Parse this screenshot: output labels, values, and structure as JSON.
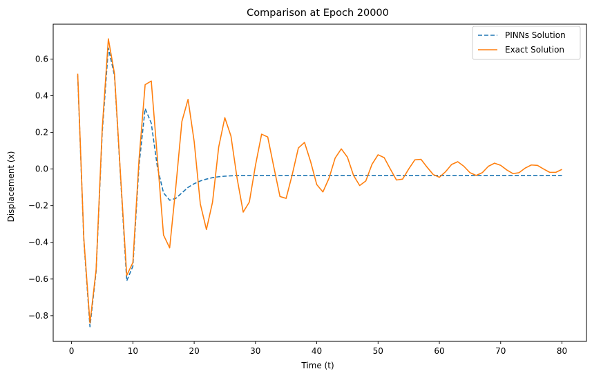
{
  "chart_data": {
    "type": "line",
    "title": "Comparison at Epoch 20000",
    "xlabel": "Time (t)",
    "ylabel": "Displacement (x)",
    "xlim": [
      -3.0,
      84.0
    ],
    "ylim": [
      -0.94,
      0.79
    ],
    "xticks": [
      0,
      10,
      20,
      30,
      40,
      50,
      60,
      70,
      80
    ],
    "yticks": [
      -0.8,
      -0.6,
      -0.4,
      -0.2,
      0.0,
      0.2,
      0.4,
      0.6
    ],
    "ytick_labels": [
      "−0.8",
      "−0.6",
      "−0.4",
      "−0.2",
      "0.0",
      "0.2",
      "0.4",
      "0.6"
    ],
    "grid": false,
    "legend_position": "top-right",
    "series": [
      {
        "name": "PINNs Solution",
        "color": "#1f77b4",
        "style": "dashed",
        "x": [
          1,
          2,
          3,
          4,
          5,
          6,
          7,
          8,
          9,
          10,
          11,
          12,
          13,
          14,
          15,
          16,
          17,
          18,
          19,
          20,
          21,
          22,
          23,
          24,
          25,
          26,
          27,
          28,
          29,
          30,
          35,
          40,
          45,
          50,
          55,
          60,
          65,
          70,
          75,
          80
        ],
        "y": [
          0.51,
          -0.39,
          -0.86,
          -0.56,
          0.2,
          0.66,
          0.51,
          -0.05,
          -0.61,
          -0.53,
          0.02,
          0.33,
          0.25,
          0.01,
          -0.13,
          -0.17,
          -0.16,
          -0.13,
          -0.1,
          -0.08,
          -0.065,
          -0.055,
          -0.047,
          -0.042,
          -0.039,
          -0.037,
          -0.036,
          -0.035,
          -0.035,
          -0.035,
          -0.035,
          -0.035,
          -0.035,
          -0.035,
          -0.035,
          -0.035,
          -0.035,
          -0.035,
          -0.035,
          -0.035
        ]
      },
      {
        "name": "Exact Solution",
        "color": "#ff7f0e",
        "style": "solid",
        "x": [
          1,
          2,
          3,
          4,
          5,
          6,
          7,
          8,
          9,
          10,
          11,
          12,
          13,
          14,
          15,
          16,
          17,
          18,
          19,
          20,
          21,
          22,
          23,
          24,
          25,
          26,
          27,
          28,
          29,
          30,
          31,
          32,
          33,
          34,
          35,
          36,
          37,
          38,
          39,
          40,
          41,
          42,
          43,
          44,
          45,
          46,
          47,
          48,
          49,
          50,
          51,
          52,
          53,
          54,
          55,
          56,
          57,
          58,
          59,
          60,
          61,
          62,
          63,
          64,
          65,
          66,
          67,
          68,
          69,
          70,
          71,
          72,
          73,
          74,
          75,
          76,
          77,
          78,
          79,
          80
        ],
        "y": [
          0.52,
          -0.38,
          -0.84,
          -0.55,
          0.22,
          0.71,
          0.52,
          -0.04,
          -0.58,
          -0.51,
          0.05,
          0.46,
          0.48,
          0.06,
          -0.36,
          -0.43,
          -0.1,
          0.26,
          0.38,
          0.15,
          -0.19,
          -0.33,
          -0.18,
          0.12,
          0.28,
          0.18,
          -0.05,
          -0.235,
          -0.18,
          0.02,
          0.19,
          0.175,
          0.01,
          -0.15,
          -0.16,
          -0.03,
          0.115,
          0.145,
          0.04,
          -0.085,
          -0.125,
          -0.05,
          0.06,
          0.11,
          0.065,
          -0.035,
          -0.09,
          -0.065,
          0.025,
          0.078,
          0.062,
          0.0,
          -0.06,
          -0.055,
          0.0,
          0.05,
          0.053,
          0.01,
          -0.03,
          -0.045,
          -0.015,
          0.025,
          0.04,
          0.015,
          -0.02,
          -0.035,
          -0.02,
          0.015,
          0.032,
          0.02,
          -0.005,
          -0.025,
          -0.02,
          0.005,
          0.022,
          0.02,
          0.0,
          -0.018,
          -0.018,
          -0.002
        ]
      }
    ]
  }
}
